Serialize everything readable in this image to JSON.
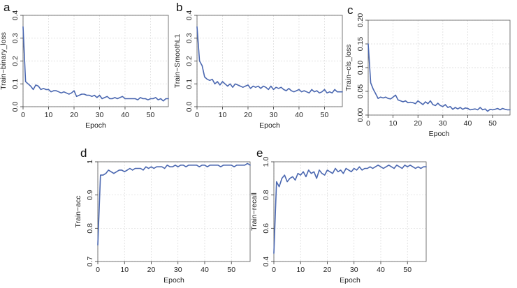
{
  "colors": {
    "series": "#4a67b0",
    "axis": "#333333",
    "grid": "#d9d9d9"
  },
  "chart_data": [
    {
      "panel": "a",
      "type": "line",
      "xlabel": "Epoch",
      "ylabel": "Train−binary_loss",
      "xlim": [
        0,
        57
      ],
      "ylim": [
        0,
        0.4
      ],
      "xticks": [
        0,
        10,
        20,
        30,
        40,
        50
      ],
      "yticks": [
        0.0,
        0.1,
        0.2,
        0.3,
        0.4
      ],
      "ytick_labels": [
        "0.0",
        "0.1",
        "0.2",
        "0.3",
        "0.4"
      ],
      "grid": true,
      "x": [
        0,
        1,
        2,
        3,
        4,
        5,
        6,
        7,
        8,
        9,
        10,
        11,
        12,
        13,
        14,
        15,
        16,
        17,
        18,
        19,
        20,
        21,
        22,
        23,
        24,
        25,
        26,
        27,
        28,
        29,
        30,
        31,
        32,
        33,
        34,
        35,
        36,
        37,
        38,
        39,
        40,
        41,
        42,
        43,
        44,
        45,
        46,
        47,
        48,
        49,
        50,
        51,
        52,
        53,
        54,
        55,
        56,
        57
      ],
      "series": [
        {
          "values": [
            0.35,
            0.11,
            0.1,
            0.09,
            0.075,
            0.095,
            0.09,
            0.075,
            0.08,
            0.075,
            0.075,
            0.065,
            0.07,
            0.07,
            0.065,
            0.06,
            0.065,
            0.06,
            0.055,
            0.06,
            0.07,
            0.045,
            0.05,
            0.055,
            0.055,
            0.05,
            0.05,
            0.045,
            0.05,
            0.04,
            0.05,
            0.035,
            0.04,
            0.045,
            0.035,
            0.035,
            0.04,
            0.035,
            0.04,
            0.045,
            0.035,
            0.035,
            0.035,
            0.035,
            0.035,
            0.03,
            0.04,
            0.035,
            0.035,
            0.03,
            0.035,
            0.035,
            0.04,
            0.03,
            0.035,
            0.025,
            0.035,
            0.035
          ]
        }
      ]
    },
    {
      "panel": "b",
      "type": "line",
      "xlabel": "Epoch",
      "ylabel": "Train−SmoothL1",
      "xlim": [
        0,
        57
      ],
      "ylim": [
        0,
        0.4
      ],
      "xticks": [
        0,
        10,
        20,
        30,
        40,
        50
      ],
      "yticks": [
        0.0,
        0.1,
        0.2,
        0.3,
        0.4
      ],
      "ytick_labels": [
        "0.0",
        "0.1",
        "0.2",
        "0.3",
        "0.4"
      ],
      "grid": true,
      "x": [
        0,
        1,
        2,
        3,
        4,
        5,
        6,
        7,
        8,
        9,
        10,
        11,
        12,
        13,
        14,
        15,
        16,
        17,
        18,
        19,
        20,
        21,
        22,
        23,
        24,
        25,
        26,
        27,
        28,
        29,
        30,
        31,
        32,
        33,
        34,
        35,
        36,
        37,
        38,
        39,
        40,
        41,
        42,
        43,
        44,
        45,
        46,
        47,
        48,
        49,
        50,
        51,
        52,
        53,
        54,
        55,
        56,
        57
      ],
      "series": [
        {
          "values": [
            0.35,
            0.2,
            0.18,
            0.13,
            0.12,
            0.115,
            0.12,
            0.1,
            0.11,
            0.095,
            0.11,
            0.1,
            0.09,
            0.1,
            0.085,
            0.1,
            0.095,
            0.09,
            0.085,
            0.09,
            0.095,
            0.08,
            0.09,
            0.085,
            0.09,
            0.08,
            0.09,
            0.085,
            0.075,
            0.09,
            0.075,
            0.085,
            0.08,
            0.085,
            0.075,
            0.07,
            0.08,
            0.07,
            0.065,
            0.07,
            0.075,
            0.065,
            0.07,
            0.065,
            0.06,
            0.075,
            0.065,
            0.07,
            0.06,
            0.065,
            0.075,
            0.06,
            0.065,
            0.06,
            0.075,
            0.065,
            0.065,
            0.065
          ]
        }
      ]
    },
    {
      "panel": "c",
      "type": "line",
      "xlabel": "Epoch",
      "ylabel": "Train−cls_loss",
      "xlim": [
        0,
        57
      ],
      "ylim": [
        0,
        0.2
      ],
      "xticks": [
        0,
        10,
        20,
        30,
        40,
        50
      ],
      "yticks": [
        0.0,
        0.05,
        0.1,
        0.15,
        0.2
      ],
      "ytick_labels": [
        "0.00",
        "0.05",
        "0.10",
        "0.15",
        "0.20"
      ],
      "grid": true,
      "x": [
        0,
        1,
        2,
        3,
        4,
        5,
        6,
        7,
        8,
        9,
        10,
        11,
        12,
        13,
        14,
        15,
        16,
        17,
        18,
        19,
        20,
        21,
        22,
        23,
        24,
        25,
        26,
        27,
        28,
        29,
        30,
        31,
        32,
        33,
        34,
        35,
        36,
        37,
        38,
        39,
        40,
        41,
        42,
        43,
        44,
        45,
        46,
        47,
        48,
        49,
        50,
        51,
        52,
        53,
        54,
        55,
        56,
        57
      ],
      "series": [
        {
          "values": [
            0.15,
            0.068,
            0.055,
            0.045,
            0.035,
            0.038,
            0.036,
            0.038,
            0.035,
            0.034,
            0.038,
            0.042,
            0.032,
            0.03,
            0.028,
            0.03,
            0.026,
            0.027,
            0.026,
            0.024,
            0.03,
            0.026,
            0.022,
            0.028,
            0.024,
            0.03,
            0.022,
            0.02,
            0.025,
            0.02,
            0.018,
            0.022,
            0.016,
            0.018,
            0.012,
            0.016,
            0.013,
            0.016,
            0.012,
            0.015,
            0.014,
            0.011,
            0.012,
            0.013,
            0.011,
            0.016,
            0.011,
            0.013,
            0.008,
            0.012,
            0.011,
            0.012,
            0.014,
            0.011,
            0.014,
            0.012,
            0.011,
            0.011
          ]
        }
      ]
    },
    {
      "panel": "d",
      "type": "line",
      "xlabel": "Epoch",
      "ylabel": "Train−acc",
      "xlim": [
        0,
        57
      ],
      "ylim": [
        0.7,
        1.0
      ],
      "xticks": [
        0,
        10,
        20,
        30,
        40,
        50
      ],
      "yticks": [
        0.7,
        0.8,
        0.9,
        1.0
      ],
      "ytick_labels": [
        "0.7",
        "0.8",
        "0.9",
        "1"
      ],
      "grid": true,
      "x": [
        0,
        1,
        2,
        3,
        4,
        5,
        6,
        7,
        8,
        9,
        10,
        11,
        12,
        13,
        14,
        15,
        16,
        17,
        18,
        19,
        20,
        21,
        22,
        23,
        24,
        25,
        26,
        27,
        28,
        29,
        30,
        31,
        32,
        33,
        34,
        35,
        36,
        37,
        38,
        39,
        40,
        41,
        42,
        43,
        44,
        45,
        46,
        47,
        48,
        49,
        50,
        51,
        52,
        53,
        54,
        55,
        56,
        57
      ],
      "series": [
        {
          "values": [
            0.75,
            0.96,
            0.96,
            0.965,
            0.975,
            0.97,
            0.965,
            0.97,
            0.975,
            0.975,
            0.97,
            0.975,
            0.98,
            0.975,
            0.98,
            0.98,
            0.98,
            0.975,
            0.985,
            0.98,
            0.985,
            0.98,
            0.985,
            0.985,
            0.985,
            0.98,
            0.99,
            0.985,
            0.985,
            0.99,
            0.985,
            0.99,
            0.99,
            0.985,
            0.99,
            0.99,
            0.99,
            0.99,
            0.985,
            0.99,
            0.99,
            0.985,
            0.99,
            0.99,
            0.99,
            0.99,
            0.985,
            0.99,
            0.99,
            0.99,
            0.99,
            0.985,
            0.99,
            0.99,
            0.99,
            0.99,
            0.995,
            0.99
          ]
        }
      ]
    },
    {
      "panel": "e",
      "type": "line",
      "xlabel": "Epoch",
      "ylabel": "Train−recall",
      "xlim": [
        0,
        57
      ],
      "ylim": [
        0.4,
        1.0
      ],
      "xticks": [
        0,
        10,
        20,
        30,
        40,
        50
      ],
      "yticks": [
        0.4,
        0.6,
        0.8,
        1.0
      ],
      "ytick_labels": [
        "0.4",
        "0.6",
        "0.8",
        "1.0"
      ],
      "grid": true,
      "x": [
        0,
        1,
        2,
        3,
        4,
        5,
        6,
        7,
        8,
        9,
        10,
        11,
        12,
        13,
        14,
        15,
        16,
        17,
        18,
        19,
        20,
        21,
        22,
        23,
        24,
        25,
        26,
        27,
        28,
        29,
        30,
        31,
        32,
        33,
        34,
        35,
        36,
        37,
        38,
        39,
        40,
        41,
        42,
        43,
        44,
        45,
        46,
        47,
        48,
        49,
        50,
        51,
        52,
        53,
        54,
        55,
        56,
        57
      ],
      "series": [
        {
          "values": [
            0.45,
            0.88,
            0.85,
            0.9,
            0.92,
            0.88,
            0.9,
            0.91,
            0.89,
            0.93,
            0.92,
            0.94,
            0.91,
            0.95,
            0.93,
            0.94,
            0.9,
            0.95,
            0.93,
            0.92,
            0.95,
            0.94,
            0.93,
            0.96,
            0.94,
            0.95,
            0.93,
            0.96,
            0.95,
            0.94,
            0.96,
            0.95,
            0.97,
            0.95,
            0.96,
            0.96,
            0.97,
            0.96,
            0.97,
            0.98,
            0.97,
            0.96,
            0.97,
            0.98,
            0.97,
            0.96,
            0.98,
            0.97,
            0.96,
            0.98,
            0.97,
            0.98,
            0.97,
            0.96,
            0.97,
            0.96,
            0.97,
            0.97
          ]
        }
      ]
    }
  ]
}
